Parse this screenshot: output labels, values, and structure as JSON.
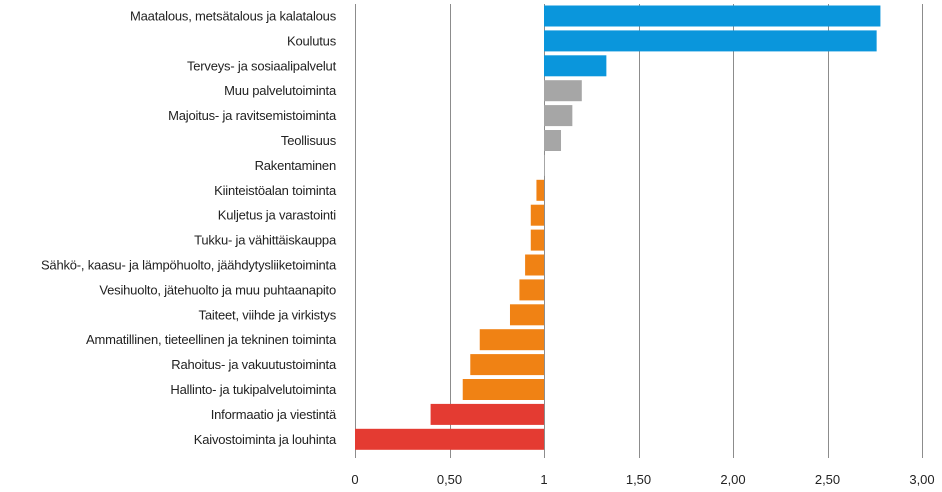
{
  "chart_data": {
    "type": "bar",
    "orientation": "horizontal",
    "baseline": 1,
    "xlim": [
      0,
      3
    ],
    "x_ticks": [
      0,
      0.5,
      1,
      1.5,
      2,
      2.5,
      3
    ],
    "x_tick_labels": [
      "0",
      "0,50",
      "1",
      "1,50",
      "2,00",
      "2,50",
      "3,00"
    ],
    "grid": "vertical",
    "legend": "none",
    "categories": [
      "Maatalous, metsätalous ja kalatalous",
      "Koulutus",
      "Terveys- ja sosiaalipalvelut",
      "Muu palvelutoiminta",
      "Majoitus- ja ravitsemistoiminta",
      "Teollisuus",
      "Rakentaminen",
      "Kiinteistöalan toiminta",
      "Kuljetus ja varastointi",
      "Tukku- ja vähittäiskauppa",
      "Sähkö-, kaasu- ja lämpöhuolto, jäähdytysliiketoiminta",
      "Vesihuolto, jätehuolto ja muu  puhtaanapito",
      "Taiteet, viihde ja virkistys",
      "Ammatillinen, tieteellinen ja tekninen toiminta",
      "Rahoitus- ja vakuutustoiminta",
      "Hallinto- ja tukipalvelutoiminta",
      "Informaatio ja viestintä",
      "Kaivostoiminta ja louhinta"
    ],
    "values": [
      2.78,
      2.76,
      1.33,
      1.2,
      1.15,
      1.09,
      1.0,
      0.96,
      0.93,
      0.93,
      0.9,
      0.87,
      0.82,
      0.66,
      0.61,
      0.57,
      0.4,
      0.0
    ],
    "colors": [
      "#0a96dc",
      "#0a96dc",
      "#0a96dc",
      "#a6a6a6",
      "#a6a6a6",
      "#a6a6a6",
      "#a6a6a6",
      "#f08214",
      "#f08214",
      "#f08214",
      "#f08214",
      "#f08214",
      "#f08214",
      "#f08214",
      "#f08214",
      "#f08214",
      "#e43b32",
      "#e43b32"
    ]
  }
}
